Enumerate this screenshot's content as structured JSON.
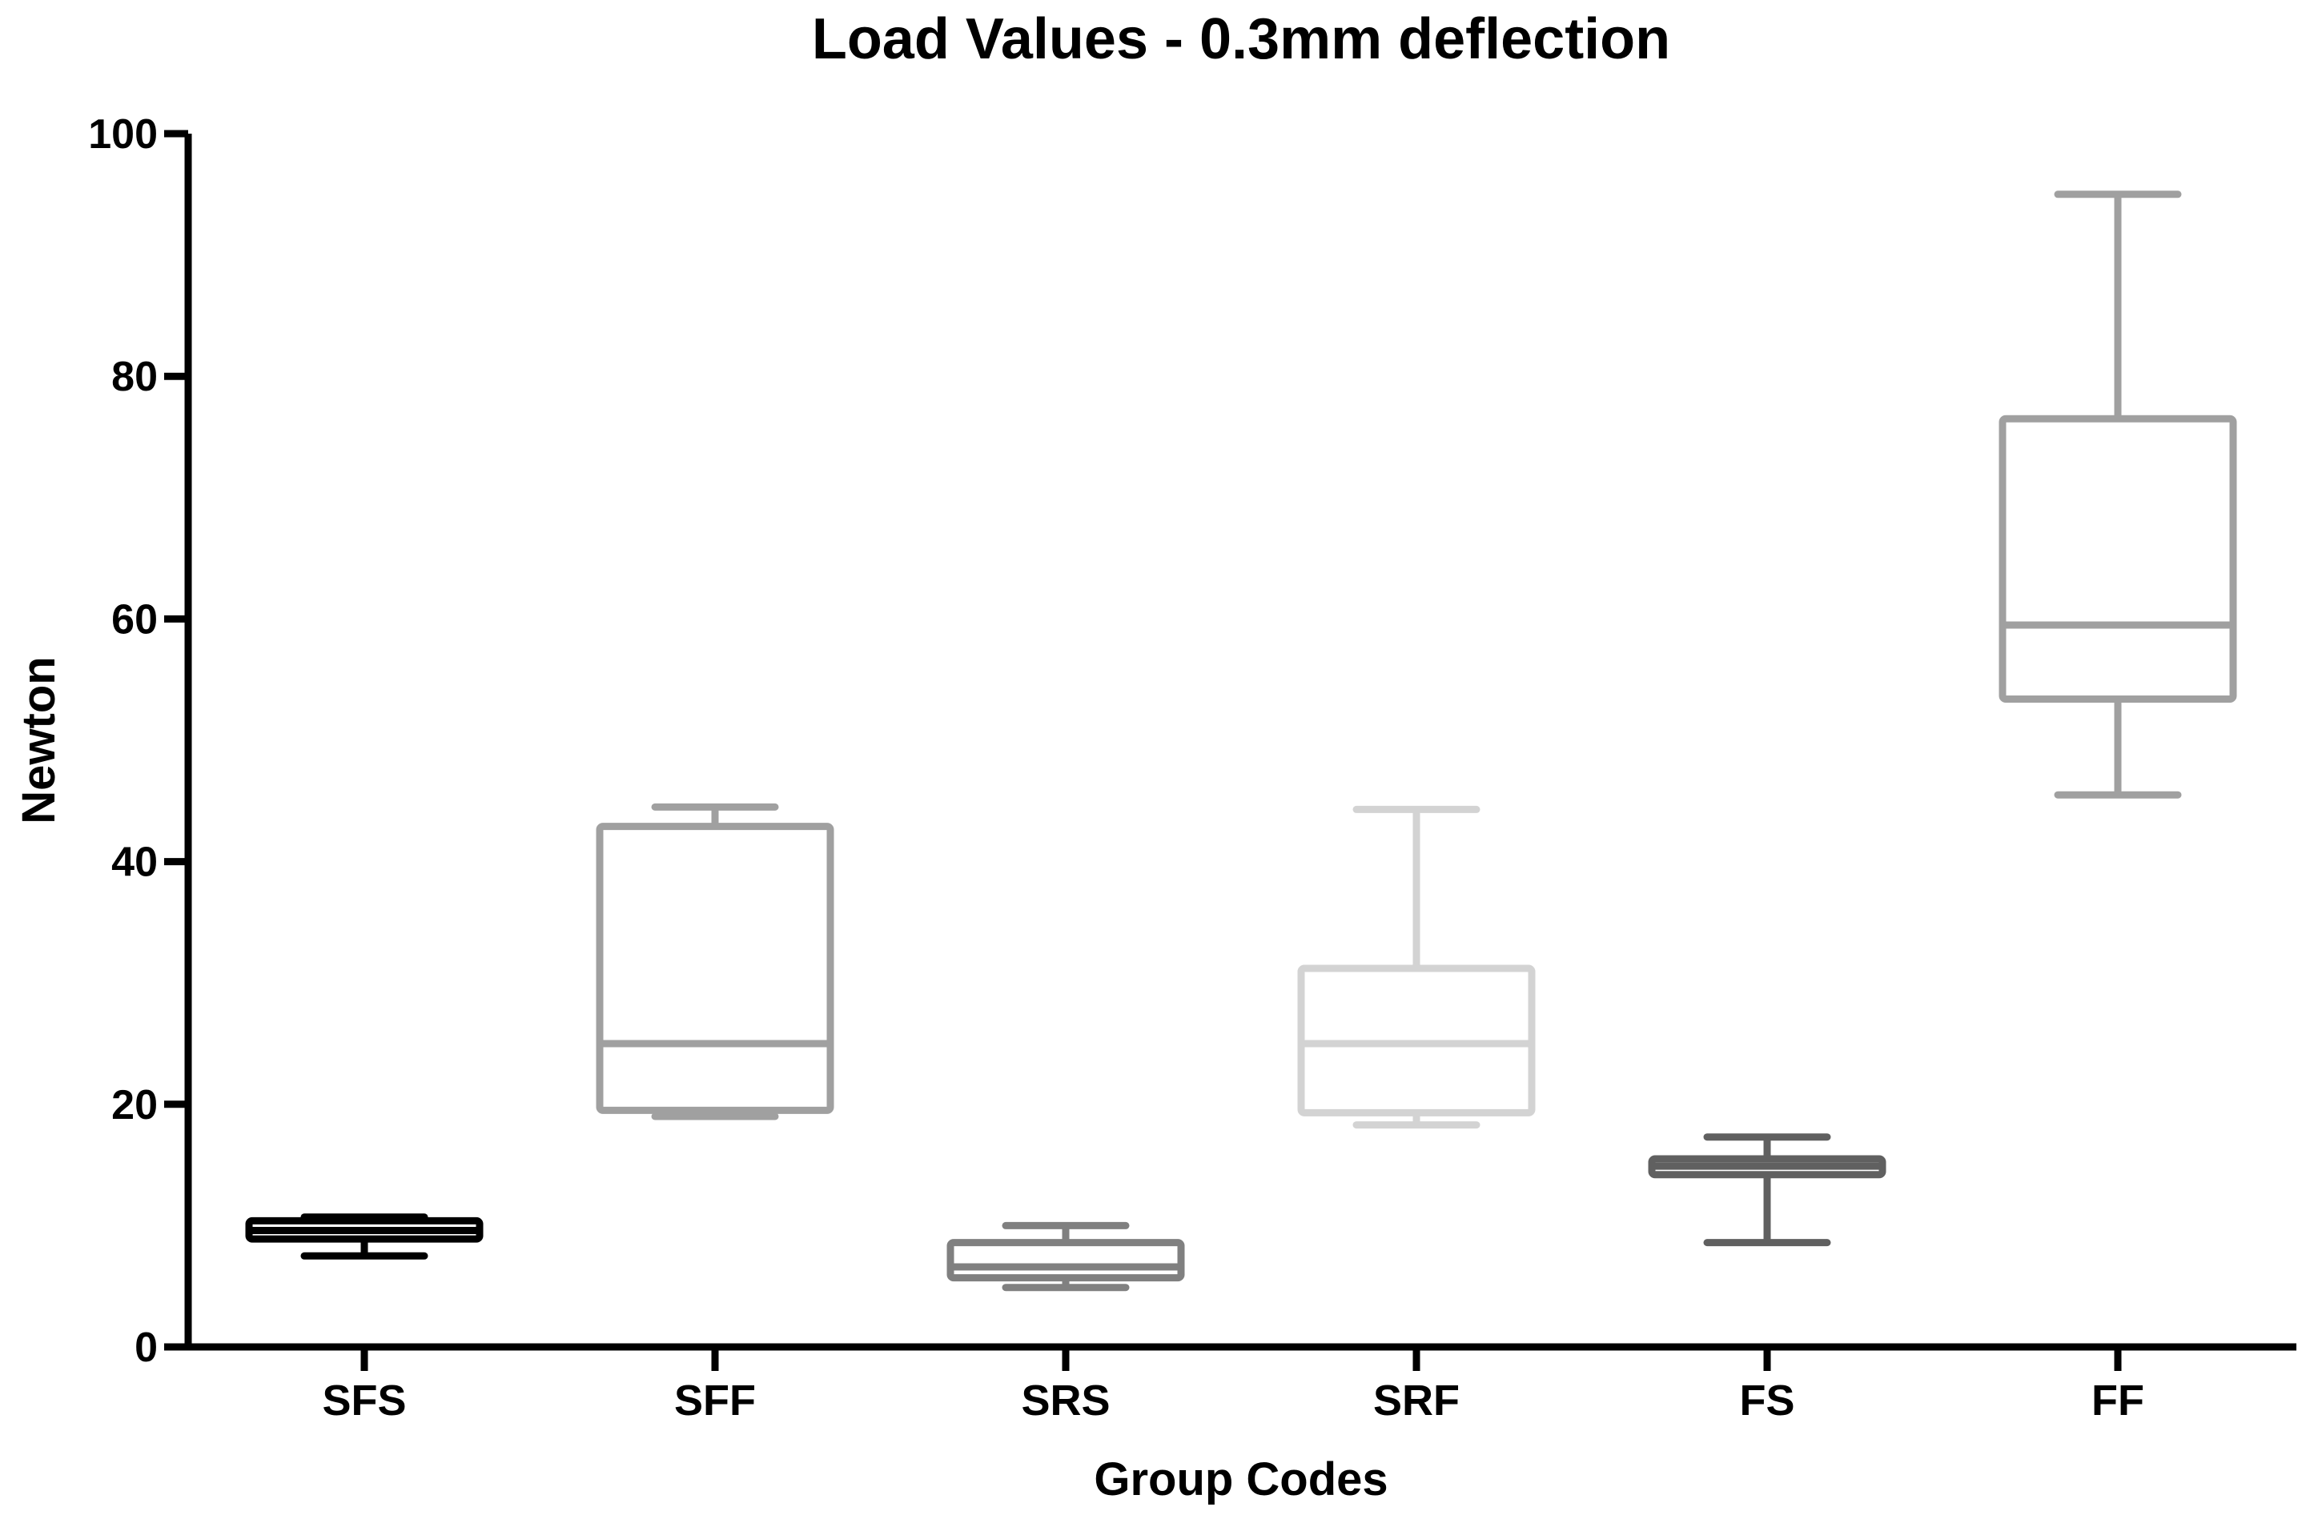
{
  "chart_data": {
    "type": "boxplot",
    "title": "Load Values - 0.3mm deflection",
    "xlabel": "Group Codes",
    "ylabel": "Newton",
    "ylim": [
      0,
      100
    ],
    "yticks": [
      0,
      20,
      40,
      60,
      80,
      100
    ],
    "categories": [
      "SFS",
      "SFF",
      "SRS",
      "SRF",
      "FS",
      "FF"
    ],
    "series": [
      {
        "name": "SFS",
        "color": "#000000",
        "min": 7.5,
        "q1": 8.9,
        "median": 9.6,
        "q3": 10.4,
        "max": 10.7
      },
      {
        "name": "SFF",
        "color": "#a0a0a0",
        "min": 19.0,
        "q1": 19.5,
        "median": 25.0,
        "q3": 42.9,
        "max": 44.5
      },
      {
        "name": "SRS",
        "color": "#808080",
        "min": 4.9,
        "q1": 5.7,
        "median": 6.6,
        "q3": 8.6,
        "max": 10.0
      },
      {
        "name": "SRF",
        "color": "#d3d3d3",
        "min": 18.3,
        "q1": 19.3,
        "median": 25.0,
        "q3": 31.2,
        "max": 44.3
      },
      {
        "name": "FS",
        "color": "#606060",
        "min": 8.6,
        "q1": 14.2,
        "median": 14.9,
        "q3": 15.5,
        "max": 17.3
      },
      {
        "name": "FF",
        "color": "#a0a0a0",
        "min": 45.5,
        "q1": 53.4,
        "median": 59.5,
        "q3": 76.5,
        "max": 95.0
      }
    ]
  }
}
